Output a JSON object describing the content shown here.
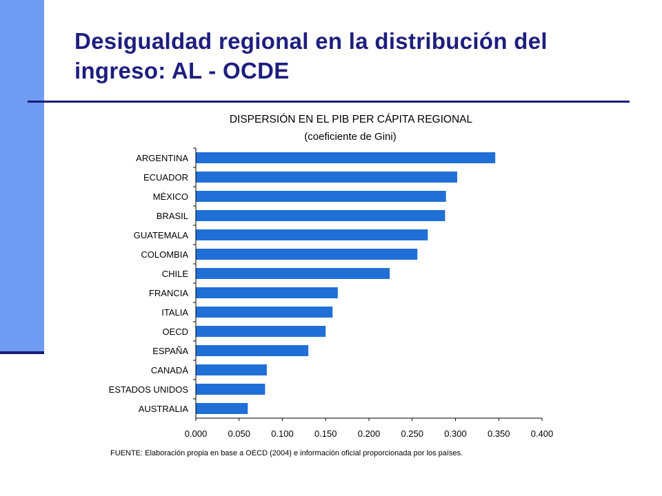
{
  "slide": {
    "title": "Desigualdad regional en la distribución del ingreso: AL - OCDE",
    "source_note": "FUENTE: Elaboración propia en base a OECD (2004) e información oficial proporcionada por los países."
  },
  "colors": {
    "bar": "#1f6fd6",
    "title": "#1e1e7e",
    "side_bar": "#6f9df3",
    "rule": "#1a1a7a"
  },
  "chart_data": {
    "type": "bar",
    "orientation": "horizontal",
    "title": "DISPERSIÓN EN EL PIB PER CÁPITA REGIONAL",
    "subtitle": "(coeficiente de Gini)",
    "categories": [
      "ARGENTINA",
      "ECUADOR",
      "MÉXICO",
      "BRASIL",
      "GUATEMALA",
      "COLOMBIA",
      "CHILE",
      "FRANCIA",
      "ITALIA",
      "OECD",
      "ESPAÑA",
      "CANADÁ",
      "ESTADOS UNIDOS",
      "AUSTRALIA"
    ],
    "values": [
      0.346,
      0.302,
      0.289,
      0.288,
      0.268,
      0.256,
      0.224,
      0.164,
      0.158,
      0.15,
      0.13,
      0.082,
      0.08,
      0.06
    ],
    "xlim": [
      0,
      0.4
    ],
    "xticks": [
      "0.000",
      "0.050",
      "0.100",
      "0.150",
      "0.200",
      "0.250",
      "0.300",
      "0.350",
      "0.400"
    ],
    "grid": false,
    "legend": "none"
  }
}
